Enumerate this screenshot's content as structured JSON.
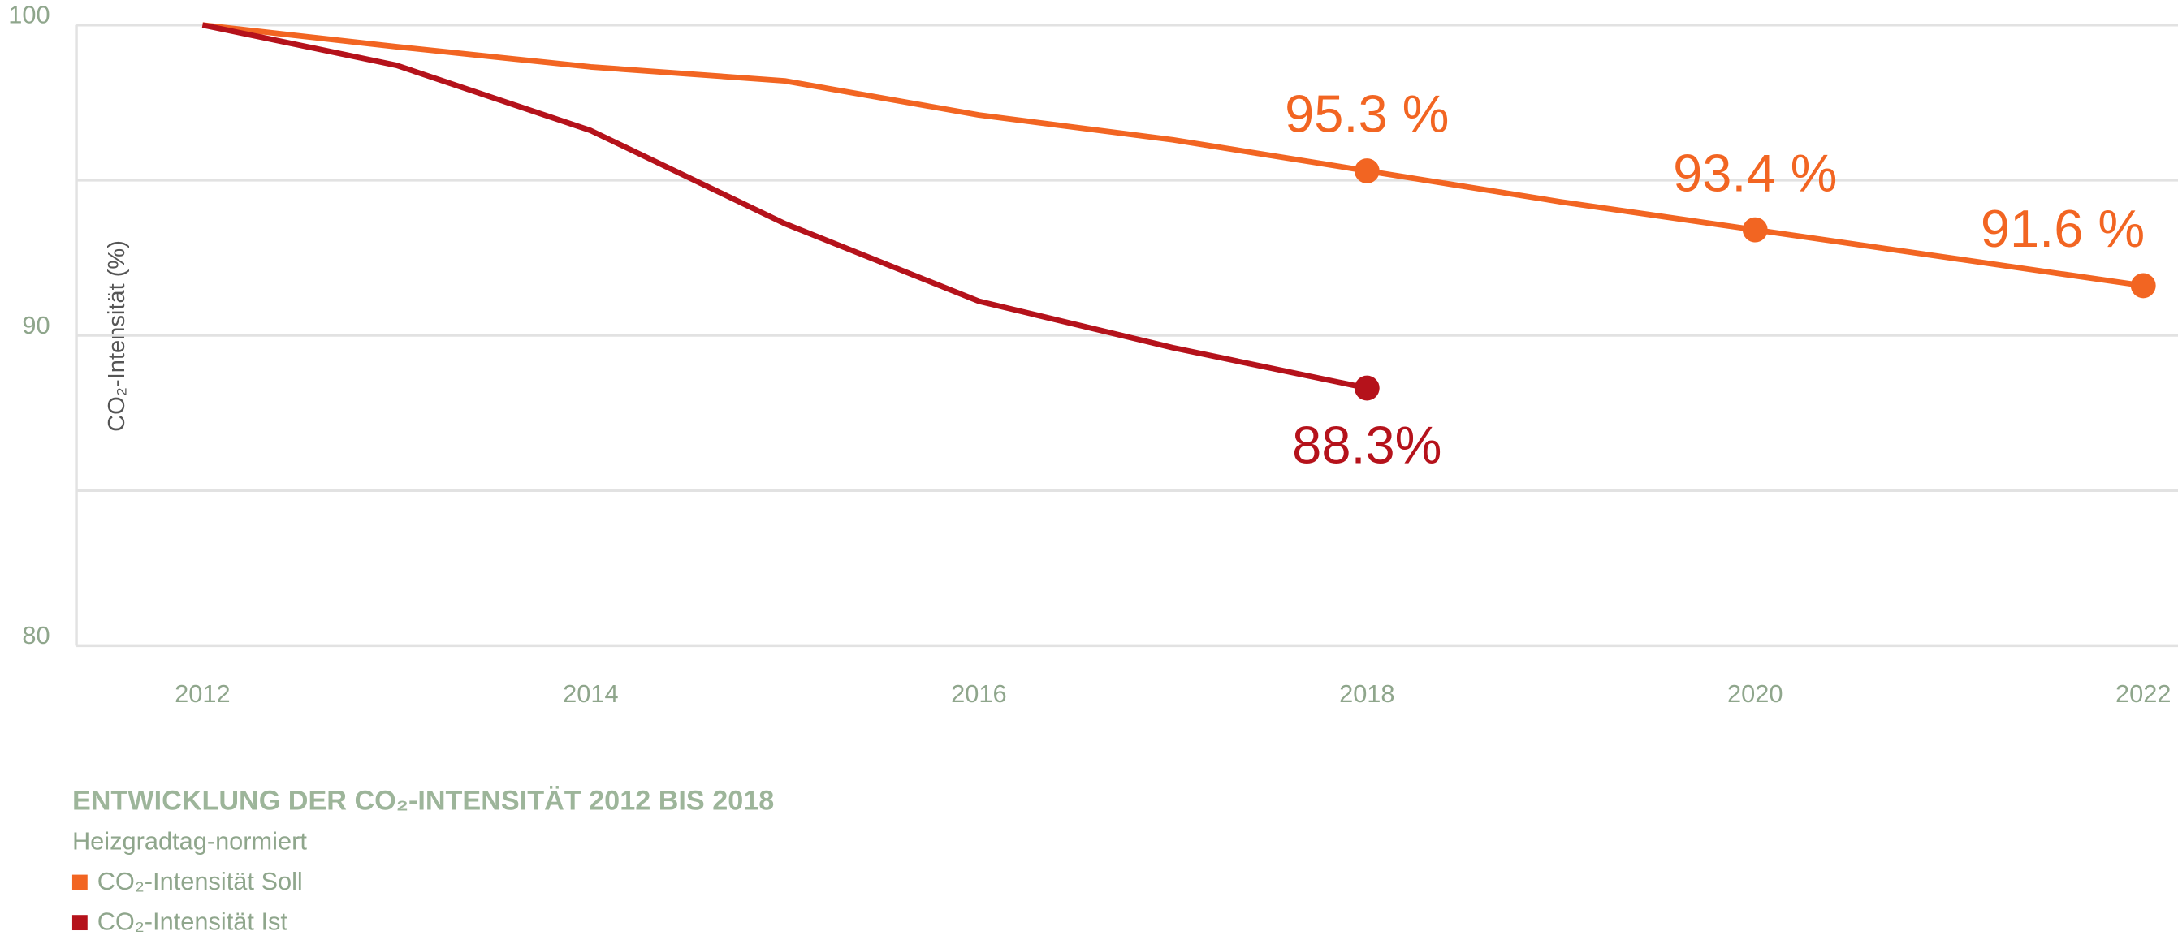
{
  "chart_data": {
    "type": "line",
    "title": "ENTWICKLUNG DER CO₂-INTENSITÄT 2012 BIS 2018",
    "subtitle": "Heizgradtag-normiert",
    "y_label": "CO₂-Intensität (%)",
    "x": [
      2012,
      2013,
      2014,
      2015,
      2016,
      2017,
      2018,
      2019,
      2020,
      2021,
      2022
    ],
    "series": [
      {
        "name": "CO₂-Intensität Soll",
        "color": "#f26522",
        "values": [
          100,
          99.3,
          98.65,
          98.2,
          97.1,
          96.3,
          95.3,
          94.3,
          93.4,
          92.5,
          91.6
        ],
        "value_labels": [
          null,
          null,
          null,
          null,
          null,
          null,
          "95.3 %",
          null,
          "93.4 %",
          null,
          "91.6 %"
        ]
      },
      {
        "name": "CO₂-Intensität Ist",
        "color": "#b5121b",
        "values": [
          100,
          98.7,
          96.6,
          93.6,
          91.1,
          89.6,
          88.3,
          null,
          null,
          null,
          null
        ],
        "value_labels": [
          null,
          null,
          null,
          null,
          null,
          null,
          "88.3%",
          null,
          null,
          null,
          null
        ]
      }
    ],
    "xlim": [
      2011.35,
      2022
    ],
    "xticks": [
      2012,
      2014,
      2016,
      2018,
      2020,
      2022
    ],
    "ylim": [
      80,
      100
    ],
    "yticks": [
      80,
      90,
      100
    ],
    "minor_yticks": [
      85,
      95
    ],
    "grid": true
  }
}
